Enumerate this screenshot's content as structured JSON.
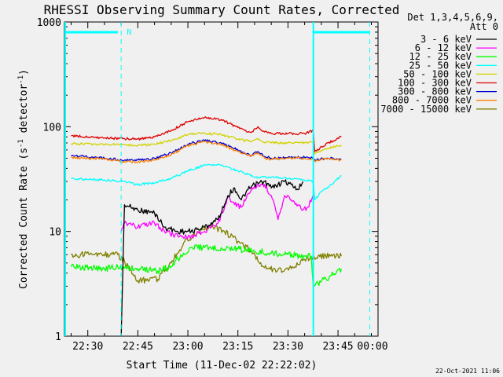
{
  "chart_data": {
    "type": "line",
    "title": "RHESSI Observing Summary Count Rates, Corrected",
    "xlabel": "Start Time (11-Dec-02 22:22:02)",
    "ylabel": "Corrected Count Rate (s^-1 detector^-1)",
    "ylabel_parts": {
      "main": "Corrected Count Rate (s",
      "sup1": "-1",
      "mid": " detector",
      "sup2": "-1",
      "end": ")"
    },
    "yscale": "log",
    "ylim": [
      1,
      1000
    ],
    "xlim_minutes": [
      -2,
      92
    ],
    "x_ticks": [
      {
        "t": 5,
        "label": "22:30"
      },
      {
        "t": 20,
        "label": "22:45"
      },
      {
        "t": 35,
        "label": "23:00"
      },
      {
        "t": 50,
        "label": "23:15"
      },
      {
        "t": 65,
        "label": "23:30"
      },
      {
        "t": 80,
        "label": "23:45"
      },
      {
        "t": 95,
        "label": "00:00"
      }
    ],
    "y_ticks": [
      {
        "v": 1,
        "label": "1"
      },
      {
        "v": 10,
        "label": "10"
      },
      {
        "v": 100,
        "label": "100"
      },
      {
        "v": 1000,
        "label": "1000"
      }
    ],
    "legend_header": [
      "Det 1,3,4,5,6,9,",
      "Att 0"
    ],
    "legend_placement": "right",
    "series": [
      {
        "name": "3 - 6 keV",
        "color": "#000000",
        "x": [
          15,
          16,
          20,
          25,
          28,
          32,
          36,
          40,
          44,
          46,
          47,
          49,
          51,
          53,
          55,
          58,
          60,
          62,
          64,
          66,
          68,
          69.5
        ],
        "y": [
          0,
          18,
          16,
          15,
          11,
          10,
          10,
          11,
          13,
          18,
          22,
          26,
          20,
          25,
          28,
          30,
          26,
          28,
          30,
          28,
          25,
          30
        ]
      },
      {
        "name": "6 - 12 keV",
        "color": "#ff00ff",
        "x": [
          15,
          16,
          20,
          25,
          28,
          32,
          36,
          40,
          44,
          46,
          47,
          49,
          51,
          53,
          55,
          58,
          60,
          62,
          64,
          66,
          68,
          69.5,
          71,
          72.5
        ],
        "y": [
          10,
          12,
          11,
          12,
          10,
          9,
          9,
          10,
          12,
          17,
          22,
          18,
          17,
          23,
          27,
          28,
          22,
          13,
          22,
          20,
          18,
          16,
          17,
          22
        ]
      },
      {
        "name": "12 - 25 keV",
        "color": "#00ff00",
        "x": [
          0,
          10,
          14,
          20,
          26,
          30,
          32,
          36,
          40,
          45,
          50,
          55,
          60,
          65,
          70,
          72,
          72.6,
          74,
          78,
          81
        ],
        "y": [
          4.6,
          4.4,
          4.6,
          4.4,
          4.2,
          4.6,
          5.5,
          7,
          7,
          7,
          6.8,
          6.5,
          6.2,
          6,
          5.8,
          5.8,
          2.9,
          3.2,
          3.8,
          4.4
        ]
      },
      {
        "name": "25 - 50 keV",
        "color": "#00ffff",
        "x": [
          0,
          10,
          16,
          20,
          25,
          30,
          35,
          40,
          45,
          50,
          55,
          60,
          65,
          70,
          72.6,
          73,
          75,
          78,
          81
        ],
        "y": [
          32,
          31,
          30,
          28,
          29,
          32,
          38,
          43,
          43,
          38,
          33,
          33,
          32,
          31,
          30,
          20,
          24,
          28,
          34
        ]
      },
      {
        "name": "50 - 100 keV",
        "color": "#d2d200",
        "x": [
          0,
          10,
          16,
          20,
          25,
          30,
          35,
          40,
          45,
          50,
          54,
          56,
          58,
          60,
          65,
          70,
          72.6,
          73,
          77,
          81
        ],
        "y": [
          69,
          68,
          67,
          66,
          68,
          74,
          84,
          87,
          84,
          76,
          72,
          76,
          71,
          70,
          70,
          70,
          72,
          55,
          62,
          67
        ]
      },
      {
        "name": "100 - 300 keV",
        "color": "#e00000",
        "x": [
          0,
          10,
          16,
          20,
          25,
          30,
          35,
          40,
          45,
          50,
          54,
          56,
          58,
          60,
          65,
          70,
          72.6,
          73,
          77,
          81
        ],
        "y": [
          82,
          78,
          77,
          76,
          80,
          92,
          112,
          123,
          117,
          98,
          88,
          100,
          89,
          86,
          86,
          86,
          92,
          58,
          70,
          80
        ]
      },
      {
        "name": "300 - 800 keV",
        "color": "#0000d0",
        "x": [
          0,
          10,
          16,
          20,
          25,
          30,
          35,
          40,
          45,
          50,
          54,
          56,
          58,
          60,
          65,
          70,
          72.6,
          73,
          77,
          81
        ],
        "y": [
          53,
          50,
          48,
          48,
          50,
          56,
          68,
          74,
          70,
          60,
          53,
          58,
          52,
          50,
          51,
          51,
          50,
          48,
          50,
          49
        ]
      },
      {
        "name": "800 - 7000 keV",
        "color": "#ff8000",
        "x": [
          0,
          10,
          16,
          20,
          25,
          30,
          35,
          40,
          45,
          50,
          54,
          56,
          58,
          60,
          65,
          70,
          72.6,
          73,
          77,
          81
        ],
        "y": [
          51,
          49,
          46,
          46,
          48,
          54,
          66,
          72,
          68,
          58,
          52,
          56,
          50,
          49,
          50,
          50,
          49,
          47,
          50,
          48
        ]
      },
      {
        "name": "7000 - 15000 keV",
        "color": "#808000",
        "x": [
          0,
          14,
          16,
          20,
          26,
          30,
          34,
          38,
          42,
          46,
          50,
          54,
          58,
          62,
          66,
          70,
          74,
          78,
          81
        ],
        "y": [
          6,
          6,
          5.2,
          3.4,
          3.5,
          5,
          8,
          10,
          11,
          10,
          8,
          6.5,
          4.5,
          4.3,
          4.4,
          5.4,
          5.8,
          6,
          5.8
        ]
      }
    ],
    "markers": [
      {
        "label": "N",
        "color": "#00ffff"
      }
    ]
  },
  "footer": {
    "date_stamp": "22-Oct-2021 11:06"
  }
}
